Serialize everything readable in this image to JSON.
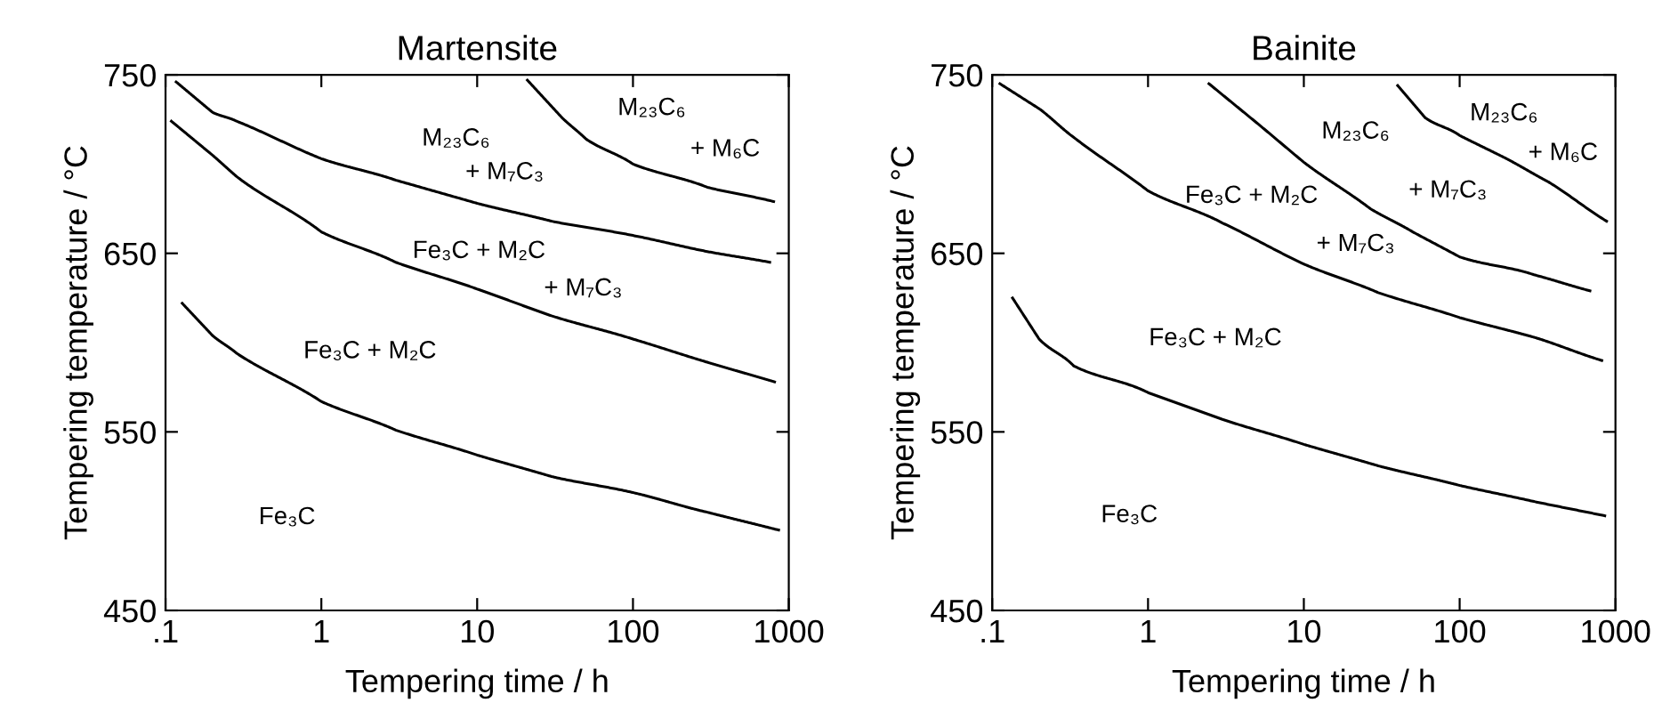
{
  "chart_data": [
    {
      "type": "line",
      "title": "Martensite",
      "xlabel": "Tempering time / h",
      "ylabel": "Tempering temperature / °C",
      "log": "x",
      "grid": false,
      "legend": false,
      "marker": "none",
      "line_style": "solid",
      "xlim": [
        0.1,
        1000
      ],
      "ylim": [
        450,
        750
      ],
      "xticks": [
        {
          "value": 0.1,
          "label": ".1"
        },
        1,
        10,
        100,
        1000
      ],
      "yticks": [
        450,
        550,
        650,
        750
      ],
      "series": [
        {
          "color": "#000000",
          "x": [
            21,
            35,
            50,
            100,
            300,
            800
          ],
          "values": [
            747,
            726,
            714,
            700,
            687,
            679
          ]
        },
        {
          "color": "#000000",
          "x": [
            0.117,
            0.2,
            0.286,
            1,
            3,
            10,
            30,
            100,
            300,
            755
          ],
          "values": [
            746,
            729,
            724,
            703,
            691,
            678,
            668,
            660,
            651,
            645
          ]
        },
        {
          "color": "#000000",
          "x": [
            0.109,
            0.2,
            0.286,
            1,
            3,
            10,
            30,
            100,
            300,
            811
          ],
          "values": [
            724,
            705,
            693,
            662,
            645,
            630,
            615,
            602,
            589,
            578
          ]
        },
        {
          "color": "#000000",
          "x": [
            0.128,
            0.2,
            0.286,
            1,
            3,
            10,
            30,
            100,
            300,
            861
          ],
          "values": [
            622,
            604,
            594,
            567,
            551,
            537,
            525,
            516,
            505,
            495
          ]
        }
      ],
      "annotations": [
        "M₂₃C₆",
        "+ M₇C₃",
        "M₂₃C₆",
        "+ M₆C",
        "Fe₃C + M₂C",
        "+ M₇C₃",
        "Fe₃C + M₂C",
        "Fe₃C"
      ]
    },
    {
      "type": "line",
      "title": "Bainite",
      "xlabel": "Tempering time / h",
      "ylabel": "Tempering temperature / °C",
      "log": "x",
      "grid": false,
      "legend": false,
      "marker": "none",
      "line_style": "solid",
      "xlim": [
        0.1,
        1000
      ],
      "ylim": [
        450,
        750
      ],
      "xticks": [
        {
          "value": 0.1,
          "label": ".1"
        },
        1,
        10,
        100,
        1000
      ],
      "yticks": [
        450,
        550,
        650,
        750
      ],
      "series": [
        {
          "color": "#000000",
          "x": [
            40,
            60,
            100,
            200,
            371,
            877
          ],
          "values": [
            744,
            726,
            716,
            703,
            690,
            668
          ]
        },
        {
          "color": "#000000",
          "x": [
            2.46,
            5,
            10,
            26.7,
            50,
            100,
            300,
            686
          ],
          "values": [
            745,
            723,
            701,
            675,
            662,
            648,
            638,
            629
          ]
        },
        {
          "color": "#000000",
          "x": [
            0.112,
            0.2,
            0.333,
            1,
            3,
            10,
            30,
            100,
            300,
            817
          ],
          "values": [
            745,
            731,
            715,
            685,
            667,
            644,
            628,
            614,
            603,
            590
          ]
        },
        {
          "color": "#000000",
          "x": [
            0.135,
            0.2,
            0.333,
            1,
            3,
            10,
            30,
            100,
            300,
            854
          ],
          "values": [
            625,
            602,
            587,
            572,
            557,
            543,
            531,
            520,
            511,
            503
          ]
        }
      ],
      "annotations": [
        "M₂₃C₆",
        "+ M₇C₃",
        "M₂₃C₆",
        "+ M₆C",
        "Fe₃C + M₂C",
        "+ M₇C₃",
        "Fe₃C + M₂C",
        "Fe₃C"
      ]
    }
  ]
}
